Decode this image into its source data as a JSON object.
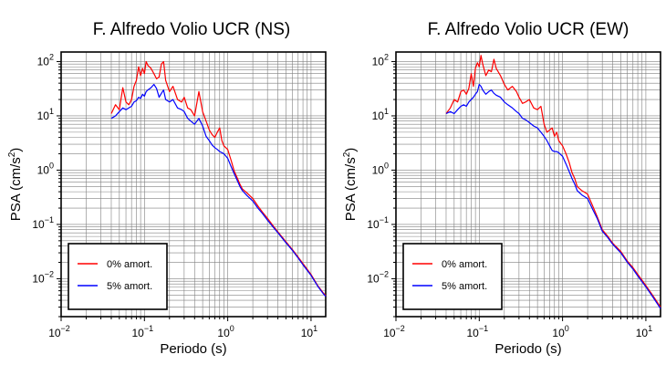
{
  "chart_data": [
    {
      "type": "line",
      "title": "F. Alfredo Volio UCR (NS)",
      "xlabel": "Periodo (s)",
      "ylabel_text": "PSA (cm/s",
      "ylabel_sup": "2",
      "ylabel_close": ")",
      "xscale": "log",
      "yscale": "log",
      "xlim": [
        0.01,
        15
      ],
      "ylim": [
        0.002,
        150
      ],
      "x_ticks": [
        {
          "base": "10",
          "exp": "−2",
          "value": 0.01
        },
        {
          "base": "10",
          "exp": "−1",
          "value": 0.1
        },
        {
          "base": "10",
          "exp": "0",
          "value": 1
        },
        {
          "base": "10",
          "exp": "1",
          "value": 10
        }
      ],
      "y_ticks": [
        {
          "base": "10",
          "exp": "2",
          "value": 100
        },
        {
          "base": "10",
          "exp": "1",
          "value": 10
        },
        {
          "base": "10",
          "exp": "0",
          "value": 1
        },
        {
          "base": "10",
          "exp": "−1",
          "value": 0.1
        },
        {
          "base": "10",
          "exp": "−2",
          "value": 0.01
        }
      ],
      "grid": true,
      "legend_position": "bottom-left",
      "series": [
        {
          "name": "0% amort.",
          "color": "#ff0000",
          "points": [
            [
              0.04,
              11
            ],
            [
              0.045,
              16
            ],
            [
              0.05,
              13
            ],
            [
              0.055,
              33
            ],
            [
              0.06,
              18
            ],
            [
              0.065,
              16
            ],
            [
              0.07,
              20
            ],
            [
              0.075,
              35
            ],
            [
              0.08,
              45
            ],
            [
              0.085,
              80
            ],
            [
              0.09,
              55
            ],
            [
              0.095,
              75
            ],
            [
              0.1,
              60
            ],
            [
              0.105,
              100
            ],
            [
              0.11,
              85
            ],
            [
              0.12,
              75
            ],
            [
              0.13,
              60
            ],
            [
              0.14,
              48
            ],
            [
              0.15,
              52
            ],
            [
              0.16,
              90
            ],
            [
              0.17,
              100
            ],
            [
              0.18,
              45
            ],
            [
              0.2,
              28
            ],
            [
              0.22,
              35
            ],
            [
              0.25,
              20
            ],
            [
              0.28,
              18
            ],
            [
              0.3,
              22
            ],
            [
              0.33,
              14
            ],
            [
              0.36,
              13
            ],
            [
              0.4,
              10
            ],
            [
              0.45,
              28
            ],
            [
              0.5,
              12
            ],
            [
              0.55,
              8
            ],
            [
              0.6,
              5.5
            ],
            [
              0.65,
              4.5
            ],
            [
              0.7,
              4
            ],
            [
              0.75,
              5
            ],
            [
              0.8,
              6
            ],
            [
              0.85,
              3.5
            ],
            [
              0.9,
              2.8
            ],
            [
              1.0,
              2.4
            ],
            [
              1.1,
              1.5
            ],
            [
              1.2,
              0.95
            ],
            [
              1.3,
              0.72
            ],
            [
              1.4,
              0.55
            ],
            [
              1.5,
              0.45
            ],
            [
              1.7,
              0.38
            ],
            [
              2.0,
              0.3
            ],
            [
              2.3,
              0.22
            ],
            [
              2.6,
              0.17
            ],
            [
              3.0,
              0.13
            ],
            [
              3.5,
              0.095
            ],
            [
              4.0,
              0.073
            ],
            [
              5.0,
              0.048
            ],
            [
              6.0,
              0.034
            ],
            [
              7.0,
              0.025
            ],
            [
              8.0,
              0.019
            ],
            [
              10.0,
              0.012
            ],
            [
              12.0,
              0.0075
            ],
            [
              14.0,
              0.0055
            ],
            [
              15.0,
              0.0049
            ]
          ]
        },
        {
          "name": "5% amort.",
          "color": "#0000ff",
          "points": [
            [
              0.04,
              9
            ],
            [
              0.045,
              10
            ],
            [
              0.05,
              12
            ],
            [
              0.055,
              14
            ],
            [
              0.06,
              13
            ],
            [
              0.065,
              14
            ],
            [
              0.07,
              15
            ],
            [
              0.075,
              18
            ],
            [
              0.08,
              19
            ],
            [
              0.085,
              22
            ],
            [
              0.09,
              21
            ],
            [
              0.095,
              25
            ],
            [
              0.1,
              23
            ],
            [
              0.105,
              28
            ],
            [
              0.11,
              30
            ],
            [
              0.12,
              33
            ],
            [
              0.13,
              38
            ],
            [
              0.14,
              32
            ],
            [
              0.15,
              22
            ],
            [
              0.16,
              26
            ],
            [
              0.17,
              30
            ],
            [
              0.18,
              20
            ],
            [
              0.2,
              18
            ],
            [
              0.22,
              20
            ],
            [
              0.25,
              14
            ],
            [
              0.28,
              13
            ],
            [
              0.3,
              12
            ],
            [
              0.33,
              9
            ],
            [
              0.36,
              8
            ],
            [
              0.4,
              7
            ],
            [
              0.45,
              9
            ],
            [
              0.5,
              6.5
            ],
            [
              0.55,
              4.2
            ],
            [
              0.6,
              3.5
            ],
            [
              0.65,
              2.9
            ],
            [
              0.7,
              2.6
            ],
            [
              0.75,
              2.4
            ],
            [
              0.8,
              2.2
            ],
            [
              0.85,
              2.1
            ],
            [
              0.9,
              2.0
            ],
            [
              1.0,
              1.65
            ],
            [
              1.1,
              1.15
            ],
            [
              1.2,
              0.85
            ],
            [
              1.3,
              0.65
            ],
            [
              1.4,
              0.5
            ],
            [
              1.5,
              0.42
            ],
            [
              1.7,
              0.34
            ],
            [
              2.0,
              0.27
            ],
            [
              2.3,
              0.2
            ],
            [
              2.6,
              0.16
            ],
            [
              3.0,
              0.12
            ],
            [
              3.5,
              0.09
            ],
            [
              4.0,
              0.07
            ],
            [
              5.0,
              0.046
            ],
            [
              6.0,
              0.033
            ],
            [
              7.0,
              0.024
            ],
            [
              8.0,
              0.018
            ],
            [
              10.0,
              0.0115
            ],
            [
              12.0,
              0.0073
            ],
            [
              14.0,
              0.0053
            ],
            [
              15.0,
              0.0047
            ]
          ]
        }
      ]
    },
    {
      "type": "line",
      "title": "F. Alfredo Volio UCR (EW)",
      "xlabel": "Periodo (s)",
      "ylabel_text": "PSA (cm/s",
      "ylabel_sup": "2",
      "ylabel_close": ")",
      "xscale": "log",
      "yscale": "log",
      "xlim": [
        0.01,
        15
      ],
      "ylim": [
        0.002,
        150
      ],
      "x_ticks": [
        {
          "base": "10",
          "exp": "−2",
          "value": 0.01
        },
        {
          "base": "10",
          "exp": "−1",
          "value": 0.1
        },
        {
          "base": "10",
          "exp": "0",
          "value": 1
        },
        {
          "base": "10",
          "exp": "1",
          "value": 10
        }
      ],
      "y_ticks": [
        {
          "base": "10",
          "exp": "2",
          "value": 100
        },
        {
          "base": "10",
          "exp": "1",
          "value": 10
        },
        {
          "base": "10",
          "exp": "0",
          "value": 1
        },
        {
          "base": "10",
          "exp": "−1",
          "value": 0.1
        },
        {
          "base": "10",
          "exp": "−2",
          "value": 0.01
        }
      ],
      "grid": true,
      "legend_position": "bottom-left",
      "series": [
        {
          "name": "0% amort.",
          "color": "#ff0000",
          "points": [
            [
              0.04,
              11
            ],
            [
              0.045,
              14
            ],
            [
              0.05,
              20
            ],
            [
              0.055,
              18
            ],
            [
              0.06,
              28
            ],
            [
              0.065,
              30
            ],
            [
              0.07,
              25
            ],
            [
              0.075,
              32
            ],
            [
              0.08,
              60
            ],
            [
              0.085,
              35
            ],
            [
              0.09,
              75
            ],
            [
              0.095,
              95
            ],
            [
              0.1,
              80
            ],
            [
              0.105,
              130
            ],
            [
              0.11,
              90
            ],
            [
              0.12,
              55
            ],
            [
              0.13,
              70
            ],
            [
              0.14,
              65
            ],
            [
              0.15,
              110
            ],
            [
              0.16,
              75
            ],
            [
              0.18,
              55
            ],
            [
              0.2,
              38
            ],
            [
              0.22,
              30
            ],
            [
              0.25,
              35
            ],
            [
              0.28,
              28
            ],
            [
              0.3,
              22
            ],
            [
              0.33,
              17
            ],
            [
              0.36,
              18
            ],
            [
              0.4,
              20
            ],
            [
              0.45,
              14
            ],
            [
              0.5,
              13
            ],
            [
              0.55,
              15
            ],
            [
              0.6,
              7
            ],
            [
              0.65,
              5
            ],
            [
              0.7,
              5.5
            ],
            [
              0.75,
              6
            ],
            [
              0.8,
              4.2
            ],
            [
              0.85,
              5
            ],
            [
              0.9,
              3.5
            ],
            [
              1.0,
              2.8
            ],
            [
              1.1,
              2.0
            ],
            [
              1.2,
              1.4
            ],
            [
              1.3,
              0.9
            ],
            [
              1.4,
              0.7
            ],
            [
              1.5,
              0.5
            ],
            [
              1.7,
              0.42
            ],
            [
              2.0,
              0.36
            ],
            [
              2.3,
              0.22
            ],
            [
              2.6,
              0.14
            ],
            [
              3.0,
              0.08
            ],
            [
              3.5,
              0.06
            ],
            [
              4.0,
              0.045
            ],
            [
              5.0,
              0.032
            ],
            [
              6.0,
              0.021
            ],
            [
              7.0,
              0.016
            ],
            [
              8.0,
              0.012
            ],
            [
              10.0,
              0.0075
            ],
            [
              12.0,
              0.005
            ],
            [
              14.0,
              0.0035
            ],
            [
              15.0,
              0.003
            ]
          ]
        },
        {
          "name": "5% amort.",
          "color": "#0000ff",
          "points": [
            [
              0.04,
              11
            ],
            [
              0.045,
              12
            ],
            [
              0.05,
              11
            ],
            [
              0.055,
              13
            ],
            [
              0.06,
              15
            ],
            [
              0.065,
              16
            ],
            [
              0.07,
              15
            ],
            [
              0.075,
              18
            ],
            [
              0.08,
              20
            ],
            [
              0.085,
              22
            ],
            [
              0.09,
              25
            ],
            [
              0.095,
              28
            ],
            [
              0.1,
              38
            ],
            [
              0.105,
              35
            ],
            [
              0.11,
              30
            ],
            [
              0.12,
              25
            ],
            [
              0.13,
              28
            ],
            [
              0.14,
              30
            ],
            [
              0.15,
              26
            ],
            [
              0.16,
              24
            ],
            [
              0.18,
              22
            ],
            [
              0.2,
              18
            ],
            [
              0.22,
              16
            ],
            [
              0.25,
              14
            ],
            [
              0.28,
              12
            ],
            [
              0.3,
              11
            ],
            [
              0.33,
              9
            ],
            [
              0.36,
              8.5
            ],
            [
              0.4,
              7.5
            ],
            [
              0.45,
              6.5
            ],
            [
              0.5,
              6
            ],
            [
              0.55,
              5
            ],
            [
              0.6,
              4.2
            ],
            [
              0.65,
              3.5
            ],
            [
              0.7,
              2.8
            ],
            [
              0.75,
              2.3
            ],
            [
              0.8,
              2.2
            ],
            [
              0.85,
              2.2
            ],
            [
              0.9,
              2.1
            ],
            [
              1.0,
              1.8
            ],
            [
              1.1,
              1.3
            ],
            [
              1.2,
              0.95
            ],
            [
              1.3,
              0.7
            ],
            [
              1.4,
              0.55
            ],
            [
              1.5,
              0.42
            ],
            [
              1.7,
              0.35
            ],
            [
              2.0,
              0.3
            ],
            [
              2.3,
              0.19
            ],
            [
              2.6,
              0.13
            ],
            [
              3.0,
              0.075
            ],
            [
              3.5,
              0.057
            ],
            [
              4.0,
              0.043
            ],
            [
              5.0,
              0.03
            ],
            [
              6.0,
              0.02
            ],
            [
              7.0,
              0.015
            ],
            [
              8.0,
              0.0112
            ],
            [
              10.0,
              0.0071
            ],
            [
              12.0,
              0.0047
            ],
            [
              14.0,
              0.0033
            ],
            [
              15.0,
              0.0028
            ]
          ]
        }
      ]
    }
  ]
}
